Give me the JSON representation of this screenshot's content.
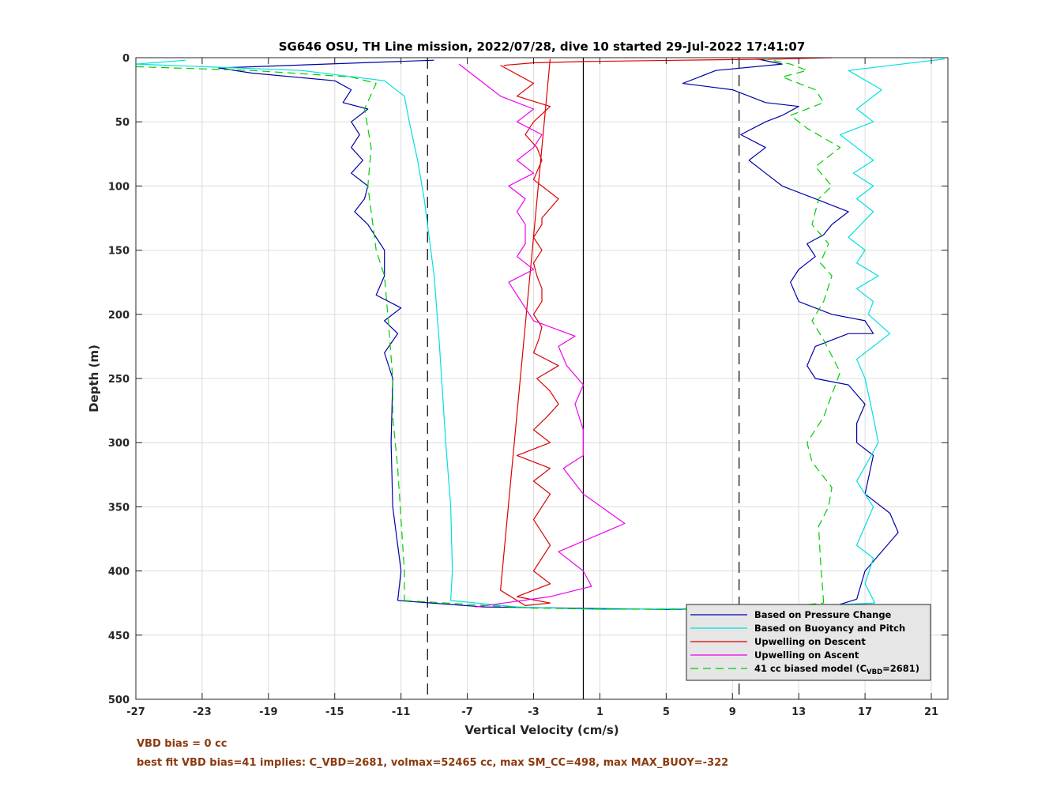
{
  "chart_data": {
    "type": "line",
    "title": "SG646 OSU, TH Line mission, 2022/07/28, dive 10 started 29-Jul-2022 17:41:07",
    "xlabel": "Vertical Velocity (cm/s)",
    "ylabel": "Depth (m)",
    "xlim": [
      -27,
      22
    ],
    "ylim": [
      0,
      500
    ],
    "y_reversed": true,
    "grid": true,
    "xticks": [
      -27,
      -23,
      -19,
      -15,
      -11,
      -7,
      -3,
      1,
      5,
      9,
      13,
      17,
      21
    ],
    "yticks": [
      0,
      50,
      100,
      150,
      200,
      250,
      300,
      350,
      400,
      450,
      500
    ],
    "vertical_lines": [
      {
        "x": -9.4,
        "style": "dashed"
      },
      {
        "x": 0,
        "style": "solid"
      },
      {
        "x": 9.4,
        "style": "dashed"
      }
    ],
    "legend_position": "bottom-right",
    "series": [
      {
        "name": "Based on Pressure Change",
        "color": "#0000a8",
        "dash": "",
        "segments": [
          {
            "x": [
              -9,
              -22,
              -20,
              -15,
              -14,
              -14.5,
              -13,
              -14,
              -13.5,
              -14,
              -13.3,
              -14,
              -13,
              -13.2,
              -13.8,
              -13,
              -12.5,
              -12,
              -12,
              -12.5,
              -11,
              -12,
              -11.2,
              -12,
              -11.5,
              -11.6,
              -11.5,
              -11.2,
              -11.0,
              -11.2
            ],
            "y": [
              2,
              8,
              12,
              18,
              25,
              35,
              40,
              50,
              60,
              70,
              80,
              90,
              100,
              110,
              120,
              130,
              140,
              150,
              170,
              185,
              195,
              205,
              215,
              230,
              250,
              300,
              350,
              380,
              400,
              423
            ]
          },
          {
            "x": [
              -11.2,
              -6,
              5,
              15,
              16.5
            ],
            "y": [
              423,
              428,
              430,
              428,
              422
            ]
          },
          {
            "x": [
              16.5,
              17,
              19,
              18.5,
              17,
              17.5,
              16.5,
              16.5,
              17,
              16,
              14,
              13.5,
              14,
              16,
              17.5,
              17,
              15,
              13,
              12.5,
              13,
              14,
              13.5,
              14.5,
              15,
              16,
              14,
              12,
              11,
              10,
              11,
              9.5,
              11,
              12,
              13,
              11,
              9,
              6,
              7,
              8,
              12,
              10.5
            ],
            "y": [
              422,
              400,
              370,
              355,
              340,
              310,
              300,
              285,
              270,
              255,
              250,
              240,
              225,
              215,
              215,
              205,
              200,
              190,
              175,
              165,
              155,
              145,
              138,
              130,
              120,
              110,
              100,
              90,
              80,
              70,
              60,
              50,
              45,
              38,
              35,
              25,
              20,
              15,
              10,
              5,
              1
            ]
          }
        ]
      },
      {
        "name": "Based on Buoyancy and Pitch",
        "color": "#00e0e0",
        "dash": "",
        "segments": [
          {
            "x": [
              -24,
              -27,
              -17,
              -12,
              -10.8,
              -10.5,
              -10,
              -9.6,
              -9.3,
              -9.0,
              -8.7,
              -8.3,
              -8.0,
              -7.9,
              -8.0
            ],
            "y": [
              2,
              5,
              10,
              18,
              30,
              50,
              80,
              110,
              140,
              170,
              220,
              300,
              350,
              400,
              423
            ]
          },
          {
            "x": [
              -8.0,
              -4,
              1,
              10,
              17.6
            ],
            "y": [
              423,
              428,
              430,
              429,
              425
            ]
          },
          {
            "x": [
              17.6,
              17,
              17.5,
              16.5,
              17.5,
              16.5,
              17.8,
              17.5,
              17,
              16.5,
              18.5,
              17.2,
              17.5,
              16.5,
              17.8,
              16.5,
              17,
              16,
              17.5,
              16.5,
              17.5,
              16.3,
              17.5,
              16.5,
              15.5,
              17.5,
              16.5,
              18,
              16,
              21.8
            ],
            "y": [
              425,
              410,
              390,
              380,
              350,
              330,
              300,
              280,
              250,
              235,
              215,
              200,
              190,
              180,
              170,
              160,
              150,
              140,
              120,
              110,
              100,
              90,
              80,
              70,
              60,
              50,
              40,
              25,
              10,
              1
            ]
          }
        ]
      },
      {
        "name": "Upwelling on Descent",
        "color": "#dd0000",
        "dash": "",
        "segments": [
          {
            "x": [
              -5,
              -3,
              -4,
              -2,
              -3,
              -3.5,
              -2.8,
              -2.5,
              -3,
              -1.5,
              -2.5,
              -2.5,
              -3,
              -2.5,
              -3,
              -2.8,
              -2.5,
              -2.5,
              -3,
              -2.5,
              -2.7,
              -3,
              -1.5,
              -2.8,
              -2,
              -1.5,
              -2.2,
              -3,
              -2,
              -4,
              -2,
              -3,
              -2,
              -3,
              -2,
              -3,
              -2,
              -4,
              -2,
              -3.5,
              -5,
              -2
            ],
            "y": [
              6,
              20,
              30,
              38,
              50,
              60,
              70,
              80,
              95,
              110,
              125,
              130,
              140,
              150,
              160,
              170,
              180,
              190,
              200,
              210,
              220,
              230,
              240,
              250,
              260,
              270,
              280,
              290,
              300,
              310,
              320,
              330,
              340,
              360,
              380,
              400,
              410,
              420,
              425,
              427,
              415,
              1
            ]
          },
          {
            "x": [
              -4.8,
              -3,
              0,
              6,
              12,
              15
            ],
            "y": [
              6,
              4,
              3,
              2,
              1,
              0
            ]
          }
        ]
      },
      {
        "name": "Upwelling on Ascent",
        "color": "#ee00ee",
        "dash": "",
        "segments": [
          {
            "x": [
              -6.5,
              -2,
              0.5,
              0,
              -1.5,
              2.5,
              0,
              -1.2,
              0,
              0,
              -0.5,
              0,
              -1,
              -1.5,
              -0.5,
              -3,
              -3.5,
              -4.5,
              -3,
              -4,
              -3.5,
              -3.5,
              -4,
              -3.5,
              -4.5,
              -3,
              -4,
              -3,
              -2.5,
              -4,
              -3,
              -5,
              -6,
              -7.5
            ],
            "y": [
              428,
              420,
              412,
              400,
              385,
              363,
              340,
              320,
              310,
              290,
              270,
              255,
              240,
              225,
              217,
              205,
              195,
              175,
              165,
              155,
              145,
              130,
              120,
              110,
              100,
              90,
              80,
              70,
              60,
              50,
              40,
              30,
              20,
              5
            ]
          }
        ]
      },
      {
        "name": "41 cc biased model (C_VBD=2681)",
        "color": "#00cc00",
        "dash": "10,6",
        "segments": [
          {
            "x": [
              -27,
              -20,
              -14,
              -12.5,
              -13.2,
              -12.8,
              -13,
              -12.7,
              -12.5,
              -12,
              -11.8,
              -11.5,
              -11.5,
              -11.2,
              -11.0,
              -10.8,
              -10.8
            ],
            "y": [
              7,
              10,
              15,
              20,
              40,
              70,
              100,
              130,
              150,
              170,
              200,
              250,
              280,
              320,
              360,
              400,
              423
            ]
          },
          {
            "x": [
              -10.8,
              -3,
              5,
              12,
              14.5
            ],
            "y": [
              423,
              429,
              430,
              428,
              425
            ]
          },
          {
            "x": [
              14.5,
              14.3,
              14.2,
              14.8,
              15,
              13.8,
              13.5,
              14.5,
              15.5,
              14.5,
              13.8,
              14.5,
              15,
              14.3,
              14.8,
              13.8,
              14.2,
              15,
              14,
              15.5,
              13.5,
              12.5,
              14.5,
              14,
              12,
              13.5,
              12.5,
              11
            ],
            "y": [
              425,
              390,
              365,
              350,
              335,
              315,
              300,
              280,
              245,
              220,
              205,
              190,
              170,
              160,
              145,
              130,
              110,
              100,
              85,
              70,
              55,
              45,
              35,
              25,
              15,
              10,
              5,
              1
            ]
          }
        ]
      }
    ]
  },
  "legend": {
    "items": [
      {
        "label": "Based on Pressure Change",
        "color": "#0000a8",
        "dash": ""
      },
      {
        "label": "Based on Buoyancy and Pitch",
        "color": "#00e0e0",
        "dash": ""
      },
      {
        "label": "Upwelling on Descent",
        "color": "#dd0000",
        "dash": ""
      },
      {
        "label": "Upwelling on Ascent",
        "color": "#ee00ee",
        "dash": ""
      },
      {
        "label_prefix": "41 cc biased model (C",
        "label_sub": "VBD",
        "label_suffix": "=2681)",
        "color": "#00cc00",
        "dash": "10,6"
      }
    ]
  },
  "notes": {
    "line1": "VBD bias = 0 cc",
    "line2": "best fit VBD bias=41 implies: C_VBD=2681, volmax=52465 cc, max SM_CC=498, max MAX_BUOY=-322"
  }
}
